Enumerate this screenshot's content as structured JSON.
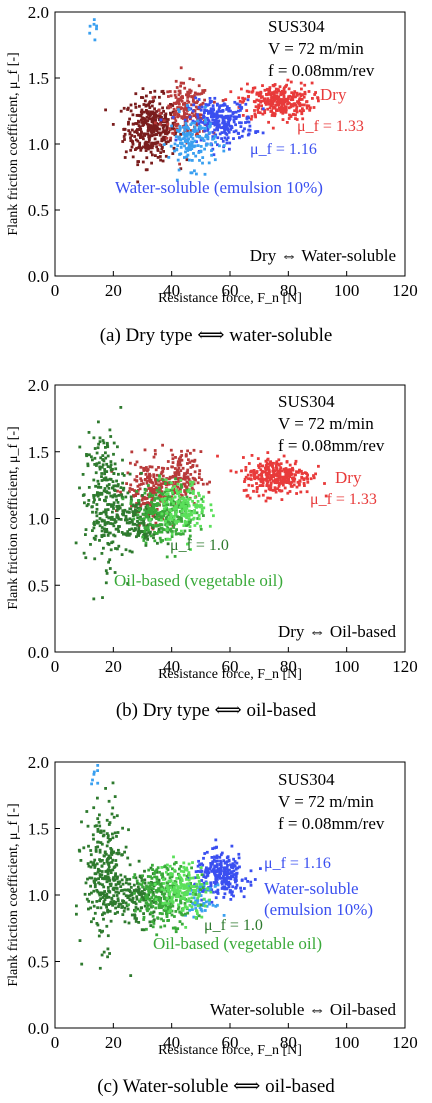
{
  "colors": {
    "dry_dark": "#7a1d1d",
    "dry_mid": "#b83a3a",
    "dry_light": "#e83a3a",
    "water_blue": "#3a4ff0",
    "water_sky": "#3aa0f0",
    "oil_dark": "#2e7a2e",
    "oil_mid": "#3aaa3a",
    "oil_light": "#5be05b"
  },
  "chart_data": [
    {
      "type": "scatter",
      "caption": "(a) Dry type ⟺ water-soluble",
      "xlabel": "Resistance force, F_n [N]",
      "ylabel": "Flank friction coefficient, μ_f [-]",
      "xlim": [
        0,
        120
      ],
      "ylim": [
        0,
        2.0
      ],
      "xticks": [
        "0",
        "20",
        "40",
        "60",
        "80",
        "100",
        "120"
      ],
      "yticks": [
        "0.0",
        "0.5",
        "1.0",
        "1.5",
        "2.0"
      ],
      "conditions": [
        "SUS304",
        "V = 72 m/min",
        "f = 0.08mm/rev"
      ],
      "pair_label": "Dry ⇔ Water-soluble",
      "series": [
        {
          "name": "Dry",
          "mu_label": "μ_f = 1.33",
          "clusters": [
            {
              "cx": 33,
              "cy": 1.12,
              "sx": 4.5,
              "sy": 0.12,
              "n": 360,
              "tone": "dry_dark"
            },
            {
              "cx": 45,
              "cy": 1.25,
              "sx": 4.0,
              "sy": 0.1,
              "n": 200,
              "tone": "dry_mid"
            },
            {
              "cx": 76,
              "cy": 1.32,
              "sx": 6.0,
              "sy": 0.07,
              "n": 300,
              "tone": "dry_light"
            }
          ]
        },
        {
          "name": "Water-soluble (emulsion 10%)",
          "mu_label": "μ_f = 1.16",
          "clusters": [
            {
              "cx": 57,
              "cy": 1.17,
              "sx": 5.5,
              "sy": 0.08,
              "n": 260,
              "tone": "water_blue"
            },
            {
              "cx": 47,
              "cy": 1.02,
              "sx": 4.0,
              "sy": 0.1,
              "n": 150,
              "tone": "water_sky"
            },
            {
              "cx": 14,
              "cy": 1.9,
              "sx": 0.8,
              "sy": 0.1,
              "n": 8,
              "tone": "water_sky"
            }
          ]
        }
      ]
    },
    {
      "type": "scatter",
      "caption": "(b) Dry type ⟺ oil-based",
      "xlabel": "Resistance force, F_n [N]",
      "ylabel": "Flank friction coefficient, μ_f [-]",
      "xlim": [
        0,
        120
      ],
      "ylim": [
        0,
        2.0
      ],
      "xticks": [
        "0",
        "20",
        "40",
        "60",
        "80",
        "100",
        "120"
      ],
      "yticks": [
        "0.0",
        "0.5",
        "1.0",
        "1.5",
        "2.0"
      ],
      "conditions": [
        "SUS304",
        "V = 72 m/min",
        "f = 0.08mm/rev"
      ],
      "pair_label": "Dry ⇔ Oil-based",
      "series": [
        {
          "name": "Dry",
          "mu_label": "μ_f = 1.33",
          "clusters": [
            {
              "cx": 33,
              "cy": 1.2,
              "sx": 4.5,
              "sy": 0.12,
              "n": 220,
              "tone": "dry_mid"
            },
            {
              "cx": 43,
              "cy": 1.3,
              "sx": 3.5,
              "sy": 0.1,
              "n": 150,
              "tone": "dry_mid"
            },
            {
              "cx": 76,
              "cy": 1.32,
              "sx": 6.0,
              "sy": 0.07,
              "n": 300,
              "tone": "dry_light"
            }
          ]
        },
        {
          "name": "Oil-based (vegetable oil)",
          "mu_label": "μ_f = 1.0",
          "clusters": [
            {
              "cx": 17,
              "cy": 1.15,
              "sx": 3.5,
              "sy": 0.25,
              "n": 260,
              "tone": "oil_dark"
            },
            {
              "cx": 28,
              "cy": 0.98,
              "sx": 4.5,
              "sy": 0.1,
              "n": 160,
              "tone": "oil_dark"
            },
            {
              "cx": 38,
              "cy": 1.05,
              "sx": 5.0,
              "sy": 0.11,
              "n": 260,
              "tone": "oil_mid"
            },
            {
              "cx": 44,
              "cy": 1.08,
              "sx": 4.0,
              "sy": 0.1,
              "n": 160,
              "tone": "oil_light"
            }
          ]
        }
      ]
    },
    {
      "type": "scatter",
      "caption": "(c) Water-soluble ⟺ oil-based",
      "xlabel": "Resistance force, F_n [N]",
      "ylabel": "Flank friction coefficient, μ_f [-]",
      "xlim": [
        0,
        120
      ],
      "ylim": [
        0,
        2.0
      ],
      "xticks": [
        "0",
        "20",
        "40",
        "60",
        "80",
        "100",
        "120"
      ],
      "yticks": [
        "0.0",
        "0.5",
        "1.0",
        "1.5",
        "2.0"
      ],
      "conditions": [
        "SUS304",
        "V = 72 m/min",
        "f = 0.08mm/rev"
      ],
      "pair_label": "Water-soluble ⇔ Oil-based",
      "series": [
        {
          "name": "Water-soluble (emulsion 10%)",
          "mu_label": "μ_f = 1.16",
          "clusters": [
            {
              "cx": 57,
              "cy": 1.15,
              "sx": 4.5,
              "sy": 0.08,
              "n": 260,
              "tone": "water_blue"
            },
            {
              "cx": 50,
              "cy": 0.95,
              "sx": 2.5,
              "sy": 0.06,
              "n": 60,
              "tone": "water_sky"
            },
            {
              "cx": 14,
              "cy": 1.92,
              "sx": 0.8,
              "sy": 0.06,
              "n": 10,
              "tone": "water_sky"
            }
          ]
        },
        {
          "name": "Oil-based (vegetable oil)",
          "mu_label": "μ_f = 1.0",
          "clusters": [
            {
              "cx": 17,
              "cy": 1.15,
              "sx": 3.5,
              "sy": 0.25,
              "n": 280,
              "tone": "oil_dark"
            },
            {
              "cx": 28,
              "cy": 0.98,
              "sx": 4.5,
              "sy": 0.1,
              "n": 160,
              "tone": "oil_dark"
            },
            {
              "cx": 38,
              "cy": 1.0,
              "sx": 5.0,
              "sy": 0.11,
              "n": 260,
              "tone": "oil_mid"
            },
            {
              "cx": 44,
              "cy": 1.05,
              "sx": 4.0,
              "sy": 0.1,
              "n": 160,
              "tone": "oil_light"
            }
          ]
        }
      ]
    }
  ]
}
